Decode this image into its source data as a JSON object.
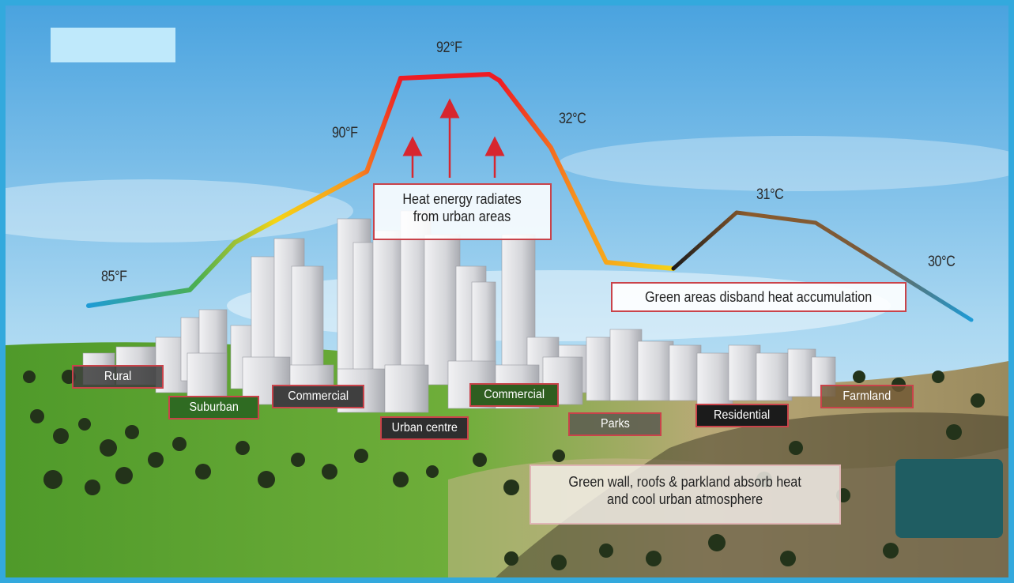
{
  "temperatures": {
    "t85f": "85°F",
    "t90f": "90°F",
    "t92f": "92°F",
    "t32c": "32°C",
    "t31c": "31°C",
    "t30c": "30°C"
  },
  "callouts": {
    "heat_line1": "Heat energy radiates",
    "heat_line2": "from urban areas",
    "green_areas": "Green areas disband heat accumulation",
    "green_wall_line1": "Green wall, roofs & parkland absorb heat",
    "green_wall_line2": "and cool urban atmosphere"
  },
  "zones": {
    "rural": "Rural",
    "suburban": "Suburban",
    "commercial_left": "Commercial",
    "urban_centre": "Urban centre",
    "commercial_right": "Commercial",
    "parks": "Parks",
    "residential": "Residential",
    "farmland": "Farmland"
  },
  "colors": {
    "sky_top": "#4aa3df",
    "sky_bottom": "#d8eef9",
    "grass": "#5b9a2e",
    "dry_field": "#c9b58a",
    "frame": "#33a9dd",
    "label_border": "#c9434a",
    "curve_cool": "#1e9bd6",
    "curve_hot": "#ee1c24",
    "curve_warm": "#f6d416",
    "curve_brown": "#6b4a2c"
  }
}
